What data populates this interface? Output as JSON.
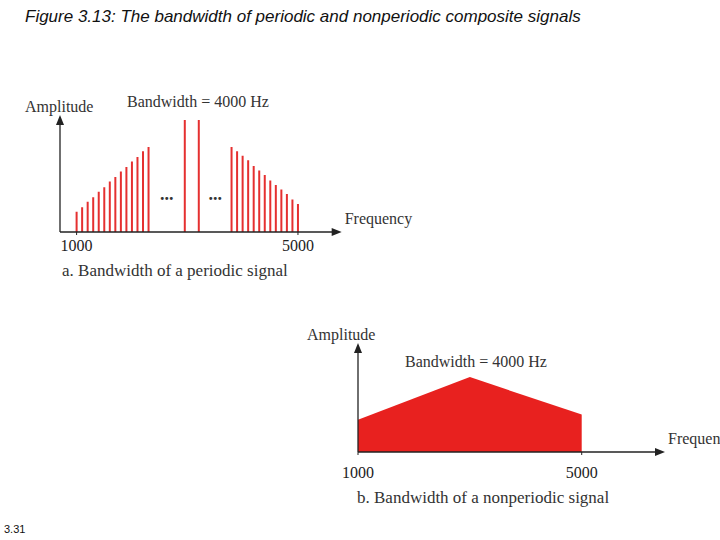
{
  "figure_title": "Figure 3.13: The bandwidth of periodic and nonperiodic composite signals",
  "page_number": "3.31",
  "chart_data": [
    {
      "type": "stem",
      "title": "a. Bandwidth of a periodic signal",
      "x_label": "Frequency",
      "y_label": "Amplitude",
      "bandwidth_label": "Bandwidth = 4000 Hz",
      "annotations": [
        "...",
        "..."
      ],
      "x": [
        1000,
        1100,
        1200,
        1300,
        1400,
        1500,
        1600,
        1700,
        1800,
        1900,
        2000,
        2100,
        2200,
        2300,
        2955,
        3208,
        3800,
        3900,
        4000,
        4100,
        4200,
        4300,
        4400,
        4500,
        4600,
        4700,
        4800,
        4900,
        5000
      ],
      "values": [
        18,
        22,
        27,
        31,
        36,
        40,
        45,
        49,
        54,
        58,
        63,
        67,
        72,
        76,
        100,
        100,
        76,
        72,
        68,
        64,
        59,
        55,
        51,
        46,
        42,
        38,
        34,
        29,
        25
      ],
      "color": "#e53030",
      "xlim": [
        700,
        5700
      ],
      "xticks": [
        1000,
        5000
      ],
      "ylim": [
        0,
        100
      ],
      "tick_labels": "x",
      "grid": false
    },
    {
      "type": "area",
      "title": "b. Bandwidth of a nonperiodic signal",
      "x_label": "Frequency",
      "y_label": "Amplitude",
      "bandwidth_label": "Bandwidth = 4000 Hz",
      "x": [
        1000,
        3000,
        5000
      ],
      "values": [
        31,
        72,
        36
      ],
      "color": "#e8211f",
      "xlim": [
        1000,
        6400
      ],
      "xticks": [
        1000,
        5000
      ],
      "ylim": [
        0,
        100
      ],
      "tick_labels": "x",
      "grid": false
    }
  ]
}
